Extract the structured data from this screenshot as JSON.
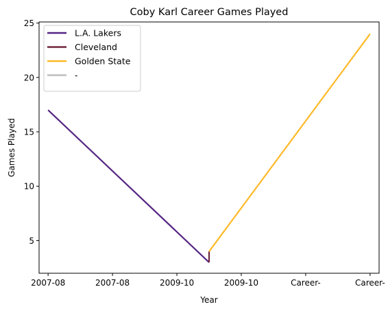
{
  "chart_data": {
    "type": "line",
    "title": "Coby Karl Career Games Played",
    "xlabel": "Year",
    "ylabel": "Games Played",
    "x_tick_labels": [
      "2007-08",
      "2007-08",
      "2009-10",
      "2009-10",
      "Career-",
      "Career-"
    ],
    "y_ticks": [
      5,
      10,
      15,
      20,
      25
    ],
    "ylim": [
      2,
      25.1
    ],
    "xlim": [
      -0.14,
      5.14
    ],
    "grid": false,
    "legend_position": "top-left",
    "series": [
      {
        "name": "L.A. Lakers",
        "color": "#552583",
        "x": [
          0,
          2.5
        ],
        "y": [
          17,
          3
        ]
      },
      {
        "name": "Cleveland",
        "color": "#6F263D",
        "x": [
          2.5,
          2.5
        ],
        "y": [
          3,
          4
        ]
      },
      {
        "name": "Golden State",
        "color": "#FDB927",
        "x": [
          2.5,
          5
        ],
        "y": [
          4,
          24
        ]
      },
      {
        "name": "-",
        "color": "#BEBEBE",
        "x": [],
        "y": []
      }
    ]
  }
}
